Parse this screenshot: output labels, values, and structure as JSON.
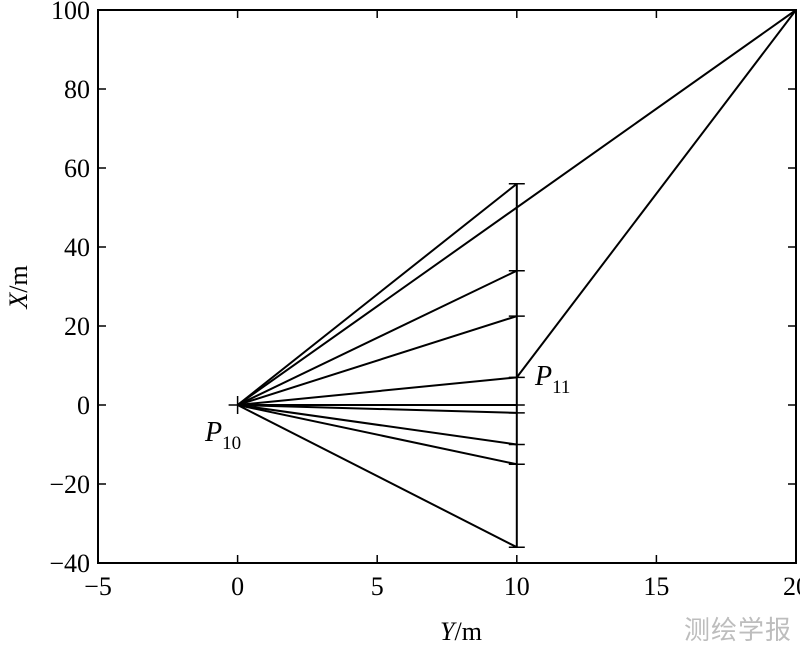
{
  "chart_data": {
    "type": "line",
    "xlabel": {
      "var": "Y",
      "unit": "/m"
    },
    "ylabel": {
      "var": "X",
      "unit": "/m"
    },
    "xlim": [
      -5,
      20
    ],
    "ylim": [
      -40,
      100
    ],
    "xticks": [
      -5,
      0,
      5,
      10,
      15,
      20
    ],
    "yticks": [
      -40,
      -20,
      0,
      20,
      40,
      60,
      80,
      100
    ],
    "xtick_labels": [
      "−5",
      "0",
      "5",
      "10",
      "15",
      "20"
    ],
    "ytick_labels": [
      "−40",
      "−20",
      "0",
      "20",
      "40",
      "60",
      "80",
      "100"
    ],
    "grid": false,
    "origin": {
      "x": 0,
      "y": 0,
      "label": "P",
      "sub": "10"
    },
    "vertical_line": {
      "x": 10,
      "y_from": -36,
      "y_to": 56
    },
    "rays": [
      {
        "x": 10,
        "y": 56
      },
      {
        "x": 10,
        "y": 34
      },
      {
        "x": 10,
        "y": 22.5
      },
      {
        "x": 10,
        "y": 7
      },
      {
        "x": 10,
        "y": 0
      },
      {
        "x": 10,
        "y": -2
      },
      {
        "x": 10,
        "y": -10
      },
      {
        "x": 10,
        "y": -15
      },
      {
        "x": 10,
        "y": -36
      },
      {
        "x": 20,
        "y": 100
      }
    ],
    "tick_marks_at_x10": [
      56,
      34,
      22.5,
      7,
      0,
      -2,
      -10,
      -15,
      -36
    ],
    "extra_segment": {
      "from": {
        "x": 10,
        "y": 7
      },
      "to": {
        "x": 20,
        "y": 100
      }
    },
    "point_label_2": {
      "x": 10,
      "y": 7,
      "label": "P",
      "sub": "11"
    }
  },
  "watermark": "测绘学报"
}
